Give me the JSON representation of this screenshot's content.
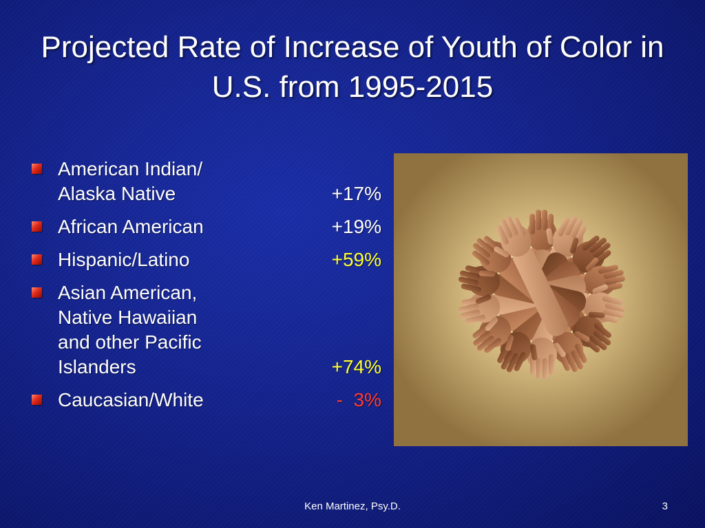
{
  "slide": {
    "title": "Projected Rate of Increase of Youth of Color in U.S. from 1995-2015",
    "bullets": [
      {
        "label": "American Indian/\nAlaska Native",
        "value": "+17%"
      },
      {
        "label": "African American",
        "value": "+19%"
      },
      {
        "label": "Hispanic/Latino",
        "value": "+59%"
      },
      {
        "label": "Asian American,\nNative Hawaiian\nand other Pacific\nIslanders",
        "value": "+74%"
      },
      {
        "label": "Caucasian/White",
        "value": "-  3%"
      }
    ],
    "footer": "Ken Martinez, Psy.D.",
    "page_number": "3"
  },
  "colors": {
    "background": "#14238c",
    "text": "#ffffff",
    "highlight_yellow": "#ffff33",
    "highlight_red": "#ff3b2f",
    "bullet_marker": "#e02a1a"
  },
  "icons": {
    "bullet": "red-square-bullet-icon"
  }
}
